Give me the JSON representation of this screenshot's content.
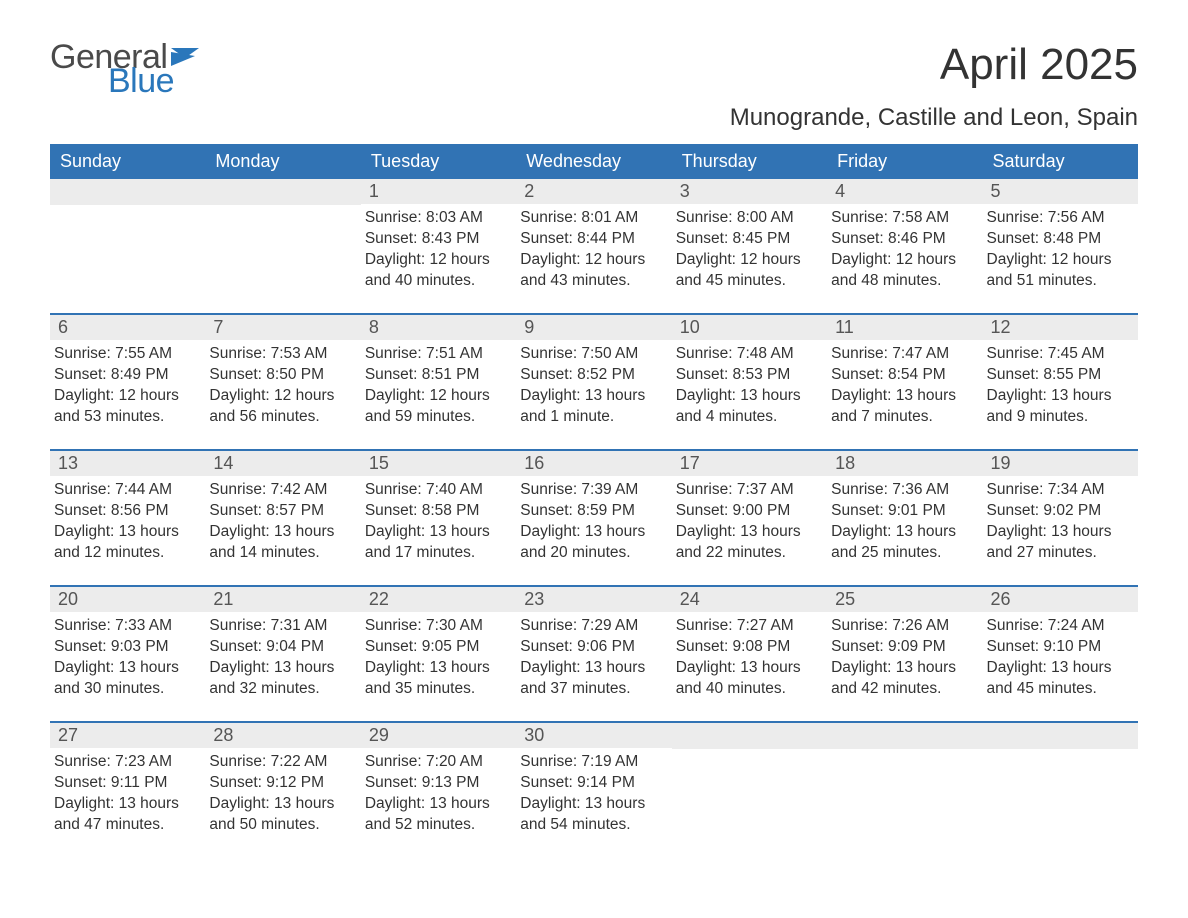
{
  "logo": {
    "word1": "General",
    "word2": "Blue"
  },
  "title": "April 2025",
  "subtitle": "Munogrande, Castille and Leon, Spain",
  "colors": {
    "header_bg": "#3173b4",
    "header_text": "#ffffff",
    "daynum_bg": "#ececec",
    "daynum_text": "#555555",
    "body_text": "#333333",
    "week_border": "#3173b4",
    "logo_gray": "#4a4a4a",
    "logo_blue": "#2a77bb",
    "page_bg": "#ffffff"
  },
  "typography": {
    "title_fontsize": 44,
    "subtitle_fontsize": 24,
    "header_fontsize": 18,
    "daynum_fontsize": 18,
    "body_fontsize": 15.5,
    "logo_fontsize": 34
  },
  "dayHeaders": [
    "Sunday",
    "Monday",
    "Tuesday",
    "Wednesday",
    "Thursday",
    "Friday",
    "Saturday"
  ],
  "weeks": [
    [
      {
        "num": "",
        "sunrise": "",
        "sunset": "",
        "daylight1": "",
        "daylight2": ""
      },
      {
        "num": "",
        "sunrise": "",
        "sunset": "",
        "daylight1": "",
        "daylight2": ""
      },
      {
        "num": "1",
        "sunrise": "Sunrise: 8:03 AM",
        "sunset": "Sunset: 8:43 PM",
        "daylight1": "Daylight: 12 hours",
        "daylight2": "and 40 minutes."
      },
      {
        "num": "2",
        "sunrise": "Sunrise: 8:01 AM",
        "sunset": "Sunset: 8:44 PM",
        "daylight1": "Daylight: 12 hours",
        "daylight2": "and 43 minutes."
      },
      {
        "num": "3",
        "sunrise": "Sunrise: 8:00 AM",
        "sunset": "Sunset: 8:45 PM",
        "daylight1": "Daylight: 12 hours",
        "daylight2": "and 45 minutes."
      },
      {
        "num": "4",
        "sunrise": "Sunrise: 7:58 AM",
        "sunset": "Sunset: 8:46 PM",
        "daylight1": "Daylight: 12 hours",
        "daylight2": "and 48 minutes."
      },
      {
        "num": "5",
        "sunrise": "Sunrise: 7:56 AM",
        "sunset": "Sunset: 8:48 PM",
        "daylight1": "Daylight: 12 hours",
        "daylight2": "and 51 minutes."
      }
    ],
    [
      {
        "num": "6",
        "sunrise": "Sunrise: 7:55 AM",
        "sunset": "Sunset: 8:49 PM",
        "daylight1": "Daylight: 12 hours",
        "daylight2": "and 53 minutes."
      },
      {
        "num": "7",
        "sunrise": "Sunrise: 7:53 AM",
        "sunset": "Sunset: 8:50 PM",
        "daylight1": "Daylight: 12 hours",
        "daylight2": "and 56 minutes."
      },
      {
        "num": "8",
        "sunrise": "Sunrise: 7:51 AM",
        "sunset": "Sunset: 8:51 PM",
        "daylight1": "Daylight: 12 hours",
        "daylight2": "and 59 minutes."
      },
      {
        "num": "9",
        "sunrise": "Sunrise: 7:50 AM",
        "sunset": "Sunset: 8:52 PM",
        "daylight1": "Daylight: 13 hours",
        "daylight2": "and 1 minute."
      },
      {
        "num": "10",
        "sunrise": "Sunrise: 7:48 AM",
        "sunset": "Sunset: 8:53 PM",
        "daylight1": "Daylight: 13 hours",
        "daylight2": "and 4 minutes."
      },
      {
        "num": "11",
        "sunrise": "Sunrise: 7:47 AM",
        "sunset": "Sunset: 8:54 PM",
        "daylight1": "Daylight: 13 hours",
        "daylight2": "and 7 minutes."
      },
      {
        "num": "12",
        "sunrise": "Sunrise: 7:45 AM",
        "sunset": "Sunset: 8:55 PM",
        "daylight1": "Daylight: 13 hours",
        "daylight2": "and 9 minutes."
      }
    ],
    [
      {
        "num": "13",
        "sunrise": "Sunrise: 7:44 AM",
        "sunset": "Sunset: 8:56 PM",
        "daylight1": "Daylight: 13 hours",
        "daylight2": "and 12 minutes."
      },
      {
        "num": "14",
        "sunrise": "Sunrise: 7:42 AM",
        "sunset": "Sunset: 8:57 PM",
        "daylight1": "Daylight: 13 hours",
        "daylight2": "and 14 minutes."
      },
      {
        "num": "15",
        "sunrise": "Sunrise: 7:40 AM",
        "sunset": "Sunset: 8:58 PM",
        "daylight1": "Daylight: 13 hours",
        "daylight2": "and 17 minutes."
      },
      {
        "num": "16",
        "sunrise": "Sunrise: 7:39 AM",
        "sunset": "Sunset: 8:59 PM",
        "daylight1": "Daylight: 13 hours",
        "daylight2": "and 20 minutes."
      },
      {
        "num": "17",
        "sunrise": "Sunrise: 7:37 AM",
        "sunset": "Sunset: 9:00 PM",
        "daylight1": "Daylight: 13 hours",
        "daylight2": "and 22 minutes."
      },
      {
        "num": "18",
        "sunrise": "Sunrise: 7:36 AM",
        "sunset": "Sunset: 9:01 PM",
        "daylight1": "Daylight: 13 hours",
        "daylight2": "and 25 minutes."
      },
      {
        "num": "19",
        "sunrise": "Sunrise: 7:34 AM",
        "sunset": "Sunset: 9:02 PM",
        "daylight1": "Daylight: 13 hours",
        "daylight2": "and 27 minutes."
      }
    ],
    [
      {
        "num": "20",
        "sunrise": "Sunrise: 7:33 AM",
        "sunset": "Sunset: 9:03 PM",
        "daylight1": "Daylight: 13 hours",
        "daylight2": "and 30 minutes."
      },
      {
        "num": "21",
        "sunrise": "Sunrise: 7:31 AM",
        "sunset": "Sunset: 9:04 PM",
        "daylight1": "Daylight: 13 hours",
        "daylight2": "and 32 minutes."
      },
      {
        "num": "22",
        "sunrise": "Sunrise: 7:30 AM",
        "sunset": "Sunset: 9:05 PM",
        "daylight1": "Daylight: 13 hours",
        "daylight2": "and 35 minutes."
      },
      {
        "num": "23",
        "sunrise": "Sunrise: 7:29 AM",
        "sunset": "Sunset: 9:06 PM",
        "daylight1": "Daylight: 13 hours",
        "daylight2": "and 37 minutes."
      },
      {
        "num": "24",
        "sunrise": "Sunrise: 7:27 AM",
        "sunset": "Sunset: 9:08 PM",
        "daylight1": "Daylight: 13 hours",
        "daylight2": "and 40 minutes."
      },
      {
        "num": "25",
        "sunrise": "Sunrise: 7:26 AM",
        "sunset": "Sunset: 9:09 PM",
        "daylight1": "Daylight: 13 hours",
        "daylight2": "and 42 minutes."
      },
      {
        "num": "26",
        "sunrise": "Sunrise: 7:24 AM",
        "sunset": "Sunset: 9:10 PM",
        "daylight1": "Daylight: 13 hours",
        "daylight2": "and 45 minutes."
      }
    ],
    [
      {
        "num": "27",
        "sunrise": "Sunrise: 7:23 AM",
        "sunset": "Sunset: 9:11 PM",
        "daylight1": "Daylight: 13 hours",
        "daylight2": "and 47 minutes."
      },
      {
        "num": "28",
        "sunrise": "Sunrise: 7:22 AM",
        "sunset": "Sunset: 9:12 PM",
        "daylight1": "Daylight: 13 hours",
        "daylight2": "and 50 minutes."
      },
      {
        "num": "29",
        "sunrise": "Sunrise: 7:20 AM",
        "sunset": "Sunset: 9:13 PM",
        "daylight1": "Daylight: 13 hours",
        "daylight2": "and 52 minutes."
      },
      {
        "num": "30",
        "sunrise": "Sunrise: 7:19 AM",
        "sunset": "Sunset: 9:14 PM",
        "daylight1": "Daylight: 13 hours",
        "daylight2": "and 54 minutes."
      },
      {
        "num": "",
        "sunrise": "",
        "sunset": "",
        "daylight1": "",
        "daylight2": ""
      },
      {
        "num": "",
        "sunrise": "",
        "sunset": "",
        "daylight1": "",
        "daylight2": ""
      },
      {
        "num": "",
        "sunrise": "",
        "sunset": "",
        "daylight1": "",
        "daylight2": ""
      }
    ]
  ]
}
